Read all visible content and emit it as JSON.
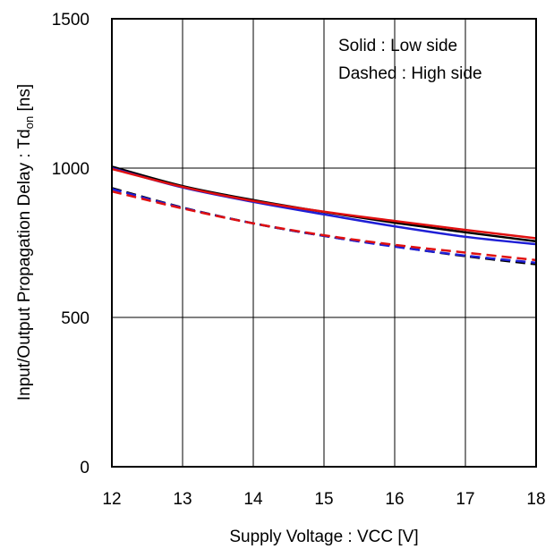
{
  "chart_data": {
    "type": "line",
    "xlabel": "Supply Voltage : VCC [V]",
    "ylabel_main": "Input/Output Propagation Delay : Td",
    "ylabel_sub": "on",
    "ylabel_unit": " [ns]",
    "xlim": [
      12,
      18
    ],
    "ylim": [
      0,
      1500
    ],
    "x_ticks": [
      "12",
      "13",
      "14",
      "15",
      "16",
      "17",
      "18"
    ],
    "y_ticks": [
      "0",
      "500",
      "1000",
      "1500"
    ],
    "grid": true,
    "annotations": [
      "Solid : Low side",
      "Dashed : High side"
    ],
    "x": [
      12,
      13,
      14,
      15,
      16,
      17,
      18
    ],
    "series": [
      {
        "color": "#000000",
        "dash": false,
        "values": [
          1005,
          940,
          893,
          853,
          817,
          785,
          755
        ]
      },
      {
        "color": "#1f1fd6",
        "dash": false,
        "values": [
          1000,
          935,
          887,
          845,
          805,
          770,
          745
        ]
      },
      {
        "color": "#e01010",
        "dash": false,
        "values": [
          997,
          937,
          890,
          854,
          823,
          793,
          765
        ]
      },
      {
        "color": "#000000",
        "dash": true,
        "values": [
          933,
          868,
          815,
          773,
          738,
          705,
          678
        ]
      },
      {
        "color": "#1f1fd6",
        "dash": true,
        "values": [
          930,
          867,
          815,
          773,
          737,
          707,
          683
        ]
      },
      {
        "color": "#e01010",
        "dash": true,
        "values": [
          922,
          865,
          815,
          775,
          743,
          717,
          692
        ]
      }
    ]
  }
}
